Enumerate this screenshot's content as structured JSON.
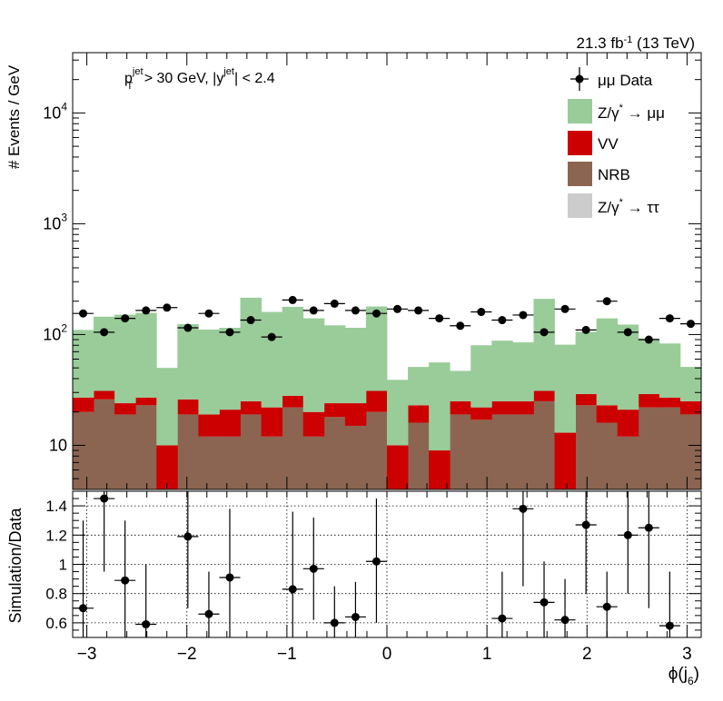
{
  "header": {
    "lumi": "21.3 fb",
    "lumi_exp": "-1",
    "energy": " (13 TeV)"
  },
  "cut_label": {
    "p": "p",
    "p_sub": "T",
    "p_sup": "jet",
    "p_rest": " > 30 GeV,  |y",
    "y_sup": "jet",
    "y_rest": "| < 2.4"
  },
  "legend": {
    "data": "μμ Data",
    "zmm_a": "Z/γ",
    "zmm_sup": "*",
    "zmm_b": " → μμ",
    "vv": "VV",
    "nrb": "NRB",
    "ztt_a": "Z/γ",
    "ztt_sup": "*",
    "ztt_b": " → ττ"
  },
  "axes": {
    "ylabel_top": "# Events / GeV",
    "ylabel_bottom": "Simulation/Data",
    "xlabel_main": "ϕ(j",
    "xlabel_sub": "6",
    "xlabel_end": ")"
  },
  "colors": {
    "zmm": "#99cc99",
    "vv": "#cc0000",
    "nrb": "#8b6552",
    "ztt": "#cccccc",
    "data": "#000000"
  },
  "chart_data": [
    {
      "type": "bar",
      "stacked": true,
      "yscale": "log",
      "ylim": [
        4,
        35000
      ],
      "xlim": [
        -3.1416,
        3.1416
      ],
      "yticks": [
        10,
        100,
        1000,
        10000
      ],
      "ytick_labels": [
        "10",
        "10",
        "10",
        "10"
      ],
      "ytick_exps": [
        "",
        "2",
        "3",
        "4"
      ],
      "bins": 30,
      "series": [
        {
          "name": "NRB",
          "values": [
            20,
            26,
            19,
            23,
            0,
            19,
            12,
            12,
            19,
            12,
            22,
            12,
            18,
            15,
            20,
            0,
            16,
            0,
            19,
            17,
            19,
            19,
            25,
            0,
            23,
            16,
            12,
            22,
            22,
            19
          ]
        },
        {
          "name": "VV",
          "values": [
            7,
            5,
            5,
            4,
            10,
            7,
            7,
            9,
            6,
            10,
            6,
            8,
            6,
            9,
            11,
            10,
            7,
            9,
            6,
            5,
            6,
            6,
            6,
            13,
            6,
            7,
            9,
            7,
            5,
            6
          ]
        },
        {
          "name": "Z/γ* → μμ",
          "values": [
            83,
            114,
            127,
            130,
            40,
            98,
            92,
            94,
            190,
            138,
            150,
            120,
            97,
            91,
            148,
            29,
            28,
            47,
            22,
            58,
            63,
            60,
            179,
            68,
            77,
            117,
            102,
            63,
            56,
            26
          ]
        },
        {
          "name": "Z/γ* → ττ",
          "values": [
            0,
            0,
            0,
            0,
            0,
            0,
            0,
            0,
            0,
            0,
            0,
            0,
            0,
            0,
            0,
            0,
            0,
            0,
            0,
            0,
            0,
            0,
            0,
            0,
            0,
            0,
            0,
            0,
            0,
            0
          ]
        }
      ],
      "data": {
        "name": "μμ Data",
        "values": [
          155,
          105,
          140,
          165,
          175,
          115,
          155,
          105,
          135,
          95,
          205,
          165,
          190,
          165,
          155,
          170,
          165,
          140,
          120,
          160,
          135,
          150,
          105,
          170,
          110,
          200,
          105,
          90,
          140,
          125
        ]
      }
    },
    {
      "type": "scatter",
      "ylim": [
        0.5,
        1.5
      ],
      "yticks": [
        0.6,
        0.8,
        1.0,
        1.2,
        1.4
      ],
      "ytick_labels": [
        "0.6",
        "0.8",
        "1",
        "1.2",
        "1.4"
      ],
      "xticks": [
        -3,
        -2,
        -1,
        0,
        1,
        2,
        3
      ],
      "xtick_labels": [
        "−3",
        "−2",
        "−1",
        "0",
        "1",
        "2",
        "3"
      ],
      "grid": true,
      "points": [
        {
          "x": -3.037,
          "y": 0.7,
          "ylo": 0.1,
          "yhi": 1.3
        },
        {
          "x": -2.827,
          "y": 1.45,
          "ylo": 0.95,
          "yhi": 1.52
        },
        {
          "x": -2.618,
          "y": 0.89,
          "ylo": 0.45,
          "yhi": 1.3
        },
        {
          "x": -2.409,
          "y": 0.59,
          "ylo": 0.5,
          "yhi": 1.0
        },
        {
          "x": -1.99,
          "y": 1.19,
          "ylo": 0.7,
          "yhi": 1.52
        },
        {
          "x": -1.78,
          "y": 0.66,
          "ylo": 0.38,
          "yhi": 0.95
        },
        {
          "x": -1.571,
          "y": 0.91,
          "ylo": 0.45,
          "yhi": 1.38
        },
        {
          "x": -0.942,
          "y": 0.83,
          "ylo": 0.3,
          "yhi": 1.36
        },
        {
          "x": -0.733,
          "y": 0.97,
          "ylo": 0.62,
          "yhi": 1.32
        },
        {
          "x": -0.524,
          "y": 0.6,
          "ylo": 0.45,
          "yhi": 0.85
        },
        {
          "x": -0.314,
          "y": 0.64,
          "ylo": 0.4,
          "yhi": 0.88
        },
        {
          "x": -0.105,
          "y": 1.02,
          "ylo": 0.6,
          "yhi": 1.45
        },
        {
          "x": 1.152,
          "y": 0.63,
          "ylo": 0.3,
          "yhi": 0.95
        },
        {
          "x": 1.361,
          "y": 1.38,
          "ylo": 0.85,
          "yhi": 1.52
        },
        {
          "x": 1.571,
          "y": 0.74,
          "ylo": 0.45,
          "yhi": 1.02
        },
        {
          "x": 1.78,
          "y": 0.62,
          "ylo": 0.35,
          "yhi": 0.9
        },
        {
          "x": 1.99,
          "y": 1.27,
          "ylo": 0.8,
          "yhi": 1.52
        },
        {
          "x": 2.199,
          "y": 0.71,
          "ylo": 0.48,
          "yhi": 0.95
        },
        {
          "x": 2.409,
          "y": 1.2,
          "ylo": 0.8,
          "yhi": 1.52
        },
        {
          "x": 2.618,
          "y": 1.25,
          "ylo": 0.7,
          "yhi": 1.52
        },
        {
          "x": 2.827,
          "y": 0.58,
          "ylo": 0.5,
          "yhi": 0.95
        }
      ]
    }
  ]
}
